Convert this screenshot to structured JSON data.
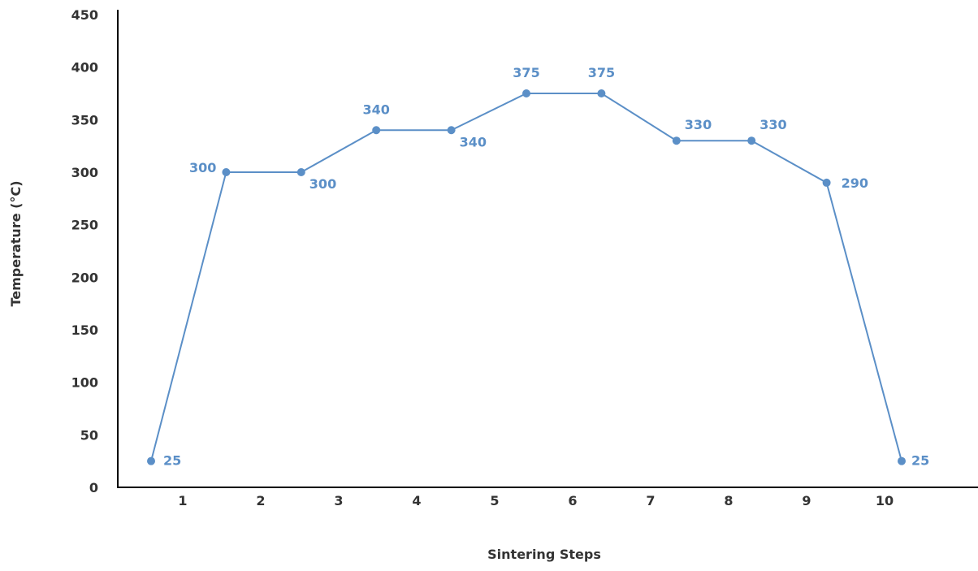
{
  "chart_data": {
    "type": "line",
    "title": "",
    "xlabel": "Sintering Steps",
    "ylabel": "Temperature (°C)",
    "x_ticks": [
      "1",
      "2",
      "3",
      "4",
      "5",
      "6",
      "7",
      "8",
      "9",
      "10"
    ],
    "y_ticks": [
      "0",
      "50",
      "100",
      "150",
      "200",
      "250",
      "300",
      "350",
      "400",
      "450"
    ],
    "ylim": [
      0,
      450
    ],
    "grid": false,
    "legend": "none",
    "series": [
      {
        "values": [
          25,
          300,
          300,
          340,
          340,
          375,
          375,
          330,
          330,
          290,
          25
        ],
        "labels": [
          "25",
          "300",
          "300",
          "340",
          "340",
          "375",
          "375",
          "330",
          "330",
          "290",
          "25"
        ],
        "color": "#5b8fc7"
      }
    ],
    "axis_color": "#000000",
    "text_color": "#333333"
  }
}
